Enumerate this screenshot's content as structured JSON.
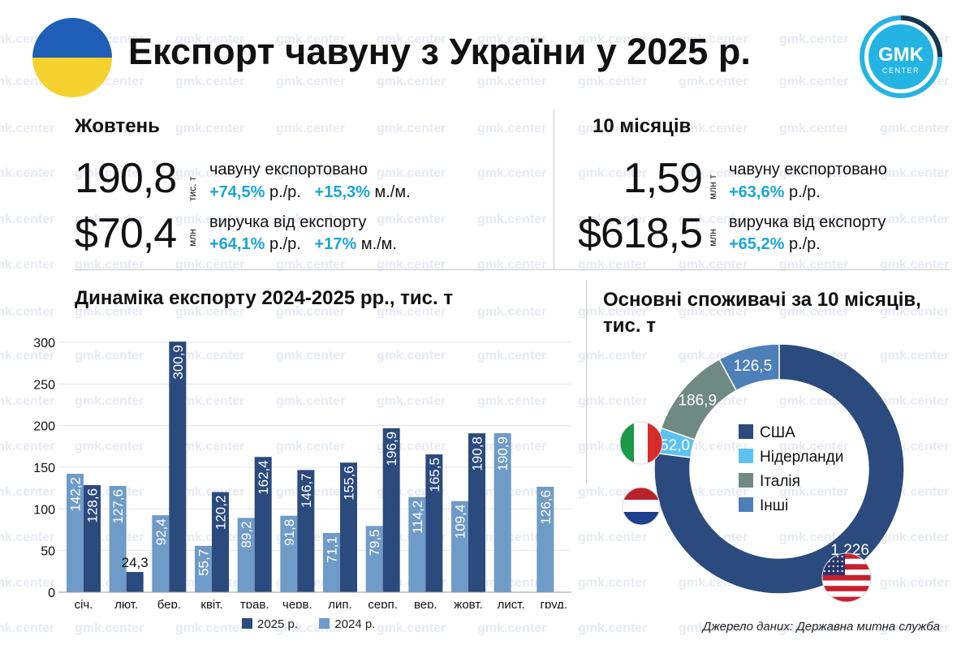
{
  "header": {
    "title": "Експорт чавуну з України у 2025 р.",
    "logo_text": "GMK",
    "logo_sub": "CENTER",
    "watermark": "gmk.center"
  },
  "colors": {
    "s2025": "#2b4a7d",
    "s2024": "#6f9bc8",
    "accent": "#18a6d8",
    "usa": "#2b4a7d",
    "netherlands": "#5bc2f2",
    "italy": "#6f8a82",
    "other": "#4d7fb8"
  },
  "october": {
    "heading": "Жовтень",
    "volume": "190,8",
    "volume_unit": "тис. т",
    "volume_desc": "чавуну експортовано",
    "volume_yoy": "+74,5%",
    "volume_yoy_suffix": " р./р.",
    "volume_mom": "+15,3%",
    "volume_mom_suffix": " м./м.",
    "revenue": "$70,4",
    "revenue_unit": "млн",
    "revenue_desc": "виручка від експорту",
    "revenue_yoy": "+64,1%",
    "revenue_yoy_suffix": " р./р.",
    "revenue_mom": "+17%",
    "revenue_mom_suffix": " м./м."
  },
  "ten_months": {
    "heading": "10 місяців",
    "volume": "1,59",
    "volume_unit": "млн т",
    "volume_desc": "чавуну експортовано",
    "volume_yoy": "+63,6%",
    "volume_yoy_suffix": " р./р.",
    "revenue": "$618,5",
    "revenue_unit": "млн",
    "revenue_desc": "виручка від експорту",
    "revenue_yoy": "+65,2%",
    "revenue_yoy_suffix": " р./р."
  },
  "chart_data": [
    {
      "type": "bar",
      "title": "Динаміка експорту 2024-2025 рр., тис. т",
      "categories": [
        "січ.",
        "лют.",
        "бер.",
        "квіт.",
        "трав.",
        "черв.",
        "лип.",
        "серп.",
        "вер.",
        "жовт.",
        "лист.",
        "груд."
      ],
      "series": [
        {
          "name": "2025 р.",
          "values": [
            128.6,
            24.3,
            300.9,
            120.2,
            162.4,
            146.7,
            155.6,
            196.9,
            165.5,
            190.8,
            null,
            null
          ],
          "labels": [
            "128,6",
            "24,3",
            "300,9",
            "120,2",
            "162,4",
            "146,7",
            "155,6",
            "196,9",
            "165,5",
            "190,8",
            "",
            ""
          ]
        },
        {
          "name": "2024 р.",
          "values": [
            142.2,
            127.6,
            92.4,
            55.7,
            89.2,
            91.8,
            71.1,
            79.5,
            114.2,
            109.4,
            190.9,
            126.6
          ],
          "labels": [
            "142,2",
            "127,6",
            "92,4",
            "55,7",
            "89,2",
            "91,8",
            "71,1",
            "79,5",
            "114,2",
            "109,4",
            "190,9",
            "126,6"
          ]
        }
      ],
      "yticks": [
        0,
        50,
        100,
        150,
        200,
        250,
        300
      ],
      "ylim": [
        0,
        300
      ],
      "grid": true,
      "legend": "bottom"
    },
    {
      "type": "pie",
      "title": "Основні споживачі за 10 місяців, тис. т",
      "slices": [
        {
          "name": "США",
          "value": 1226,
          "label": "1 226"
        },
        {
          "name": "Нідерланди",
          "value": 52.0,
          "label": "52,0"
        },
        {
          "name": "Італія",
          "value": 186.9,
          "label": "186,9"
        },
        {
          "name": "Інші",
          "value": 126.5,
          "label": "126,5"
        }
      ],
      "legend": "center"
    }
  ],
  "legend_bar": {
    "s2025": "2025 р.",
    "s2024": "2024 р."
  },
  "source": "Джерело даних: Державна митна служба"
}
